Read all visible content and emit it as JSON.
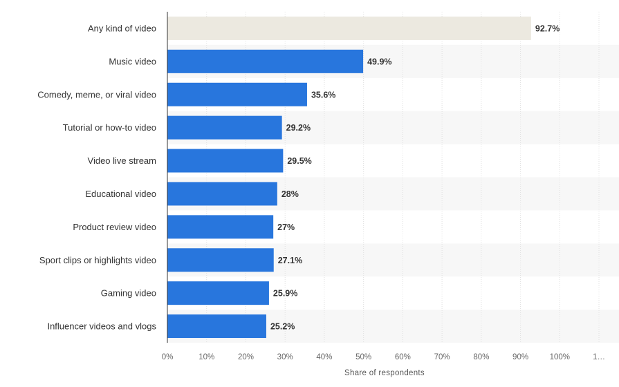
{
  "chart_data": {
    "type": "bar",
    "orientation": "horizontal",
    "categories": [
      "Any kind of video",
      "Music video",
      "Comedy, meme, or viral video",
      "Tutorial or how-to video",
      "Video live stream",
      "Educational video",
      "Product review video",
      "Sport clips or highlights video",
      "Gaming video",
      "Influencer videos and vlogs"
    ],
    "values": [
      92.7,
      49.9,
      35.6,
      29.2,
      29.5,
      28,
      27,
      27.1,
      25.9,
      25.2
    ],
    "value_labels": [
      "92.7%",
      "49.9%",
      "35.6%",
      "29.2%",
      "29.5%",
      "28%",
      "27%",
      "27.1%",
      "25.9%",
      "25.2%"
    ],
    "xlabel": "Share of respondents",
    "ylabel": "",
    "title": "",
    "xlim": [
      0,
      110
    ],
    "x_ticks": [
      "0%",
      "10%",
      "20%",
      "30%",
      "40%",
      "50%",
      "60%",
      "70%",
      "80%",
      "90%",
      "100%",
      "1…"
    ],
    "grid": true,
    "legend": "none",
    "colors": {
      "highlight_bar": "#ece9e0",
      "bar": "#2876dd",
      "band": "#f7f7f7",
      "grid": "#e0e0e0",
      "axis": "#333333"
    }
  }
}
